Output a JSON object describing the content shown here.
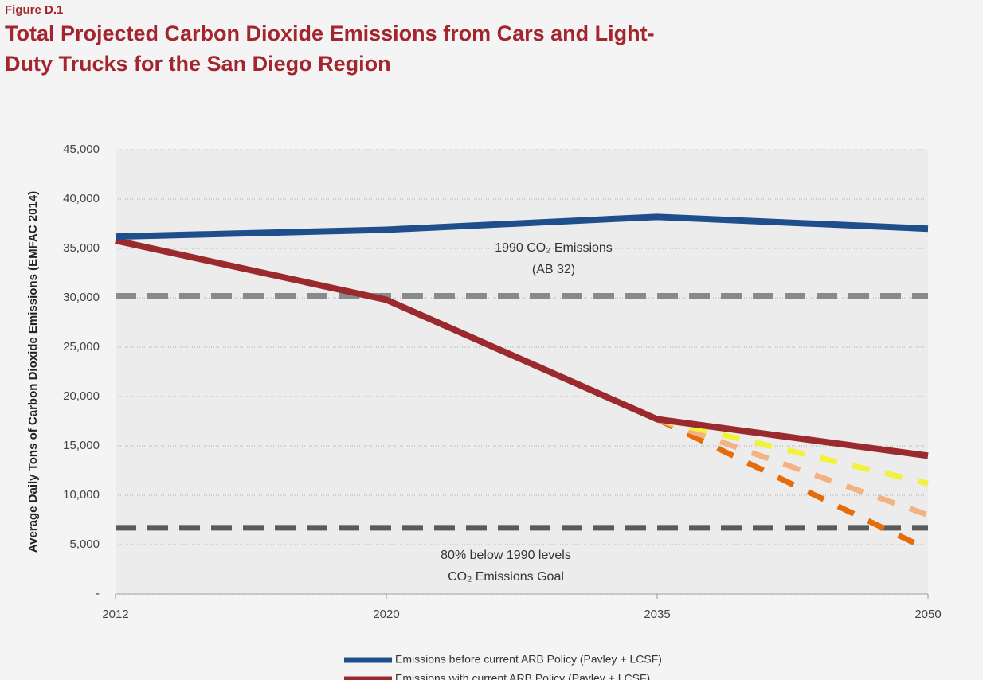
{
  "chart_data": {
    "type": "line",
    "figure_label": "Figure D.1",
    "title": "Total Projected Carbon Dioxide Emissions from Cars and Light-Duty Trucks for the San Diego Region",
    "y_label": "Average Daily Tons of Carbon Dioxide Emissions (EMFAC 2014)",
    "categories": [
      "2012",
      "2020",
      "2035",
      "2050"
    ],
    "ylim": [
      0,
      45000
    ],
    "yticks": [
      {
        "value": 0,
        "label": "-"
      },
      {
        "value": 5000,
        "label": "5,000"
      },
      {
        "value": 10000,
        "label": "10,000"
      },
      {
        "value": 15000,
        "label": "15,000"
      },
      {
        "value": 20000,
        "label": "20,000"
      },
      {
        "value": 25000,
        "label": "25,000"
      },
      {
        "value": 30000,
        "label": "30,000"
      },
      {
        "value": 35000,
        "label": "35,000"
      },
      {
        "value": 40000,
        "label": "40,000"
      },
      {
        "value": 45000,
        "label": "45,000"
      }
    ],
    "grid": true,
    "series": [
      {
        "name": "Emissions before current ARB Policy (Pavley + LCSF)",
        "color": "#1f4e8c",
        "values": [
          36200,
          36900,
          38200,
          37000
        ]
      },
      {
        "name": "Emissions with current ARB Policy (Pavley + LCSF)",
        "color": "#9b2a2e",
        "values": [
          35800,
          29800,
          17700,
          14000
        ]
      },
      {
        "color": "#f2f23c",
        "dashed": true,
        "values": [
          null,
          null,
          17700,
          11200
        ]
      },
      {
        "color": "#f4b183",
        "dashed": true,
        "values": [
          null,
          null,
          17700,
          8000
        ]
      },
      {
        "color": "#e46c0a",
        "dashed": true,
        "values": [
          null,
          null,
          17700,
          4500
        ]
      }
    ],
    "reference_lines": [
      {
        "value": 30200,
        "color": "#8a8a8a",
        "label": [
          "1990 CO₂ Emissions",
          "(AB 32)"
        ]
      },
      {
        "value": 6700,
        "color": "#5a5a5a",
        "label": [
          "80% below 1990 levels",
          "CO₂ Emissions Goal"
        ]
      }
    ]
  }
}
